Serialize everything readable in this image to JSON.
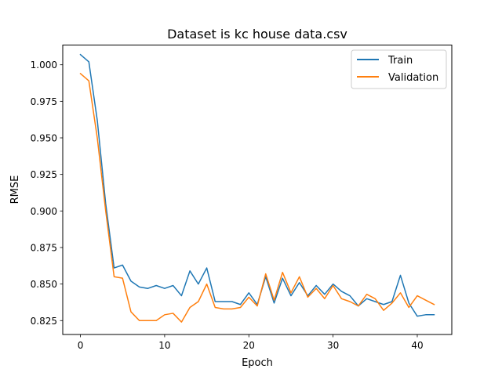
{
  "chart_data": {
    "type": "line",
    "title": "Dataset is kc house data.csv",
    "xlabel": "Epoch",
    "ylabel": "RMSE",
    "xlim": [
      -2.1,
      44.1
    ],
    "ylim": [
      0.8155,
      1.0135
    ],
    "xticks": [
      0,
      10,
      20,
      30,
      40
    ],
    "yticks": [
      0.825,
      0.85,
      0.875,
      0.9,
      0.925,
      0.95,
      0.975,
      1.0
    ],
    "ytick_labels": [
      "0.825",
      "0.850",
      "0.875",
      "0.900",
      "0.925",
      "0.950",
      "0.975",
      "1.000"
    ],
    "grid": false,
    "legend_position": "top-right",
    "x": [
      0,
      1,
      2,
      3,
      4,
      5,
      6,
      7,
      8,
      9,
      10,
      11,
      12,
      13,
      14,
      15,
      16,
      17,
      18,
      19,
      20,
      21,
      22,
      23,
      24,
      25,
      26,
      27,
      28,
      29,
      30,
      31,
      32,
      33,
      34,
      35,
      36,
      37,
      38,
      39,
      40,
      41,
      42
    ],
    "series": [
      {
        "name": "Train",
        "color": "#1f77b4",
        "values": [
          1.007,
          1.002,
          0.962,
          0.905,
          0.861,
          0.863,
          0.852,
          0.848,
          0.847,
          0.849,
          0.847,
          0.849,
          0.842,
          0.859,
          0.85,
          0.861,
          0.838,
          0.838,
          0.838,
          0.836,
          0.844,
          0.836,
          0.855,
          0.837,
          0.854,
          0.842,
          0.851,
          0.842,
          0.849,
          0.843,
          0.85,
          0.845,
          0.842,
          0.835,
          0.84,
          0.838,
          0.836,
          0.838,
          0.856,
          0.837,
          0.828,
          0.829,
          0.829
        ]
      },
      {
        "name": "Validation",
        "color": "#ff7f0e",
        "values": [
          0.994,
          0.989,
          0.95,
          0.9,
          0.855,
          0.854,
          0.831,
          0.825,
          0.825,
          0.825,
          0.829,
          0.83,
          0.824,
          0.834,
          0.838,
          0.85,
          0.834,
          0.833,
          0.833,
          0.834,
          0.841,
          0.835,
          0.857,
          0.839,
          0.858,
          0.844,
          0.855,
          0.841,
          0.847,
          0.84,
          0.849,
          0.84,
          0.838,
          0.835,
          0.843,
          0.84,
          0.832,
          0.837,
          0.844,
          0.834,
          0.842,
          0.839,
          0.836
        ]
      }
    ]
  }
}
